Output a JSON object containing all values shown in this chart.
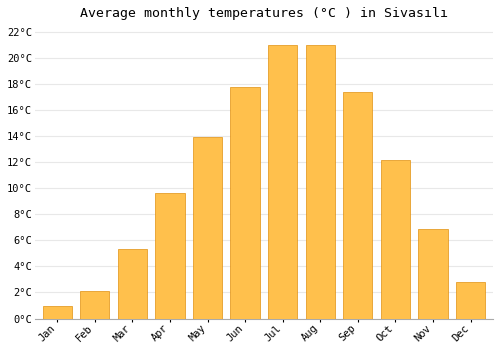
{
  "title": "Average monthly temperatures (°C ) in Sivasılı",
  "months": [
    "Jan",
    "Feb",
    "Mar",
    "Apr",
    "May",
    "Jun",
    "Jul",
    "Aug",
    "Sep",
    "Oct",
    "Nov",
    "Dec"
  ],
  "values": [
    1.0,
    2.1,
    5.3,
    9.6,
    13.9,
    17.8,
    21.0,
    21.0,
    17.4,
    12.2,
    6.9,
    2.8
  ],
  "bar_color_main": "#FFC04C",
  "bar_color_left": "#F5A623",
  "bar_edge_color": "#E09010",
  "background_color": "#ffffff",
  "grid_color": "#e8e8e8",
  "ylim": [
    0,
    22.5
  ],
  "yticks": [
    0,
    2,
    4,
    6,
    8,
    10,
    12,
    14,
    16,
    18,
    20,
    22
  ],
  "ylabel_suffix": "°C",
  "title_fontsize": 9.5,
  "tick_fontsize": 7.5,
  "bar_width": 0.78
}
